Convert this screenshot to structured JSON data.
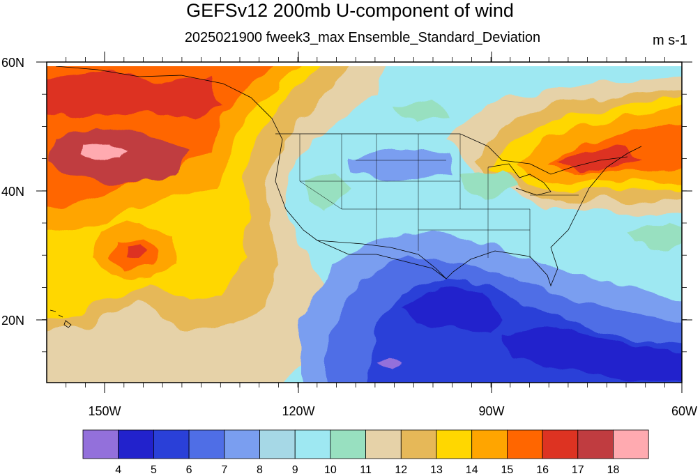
{
  "title": "GEFSv12 200mb U-component of wind",
  "subtitle": "2025021900 fweek3_max Ensemble_Standard_Deviation",
  "units": "m s-1",
  "latitude_labels": [
    "60N",
    "40N",
    "20N"
  ],
  "longitude_labels": [
    "150W",
    "120W",
    "90W",
    "60W"
  ],
  "colorbar": {
    "labels": [
      "4",
      "5",
      "6",
      "7",
      "8",
      "9",
      "10",
      "11",
      "12",
      "13",
      "14",
      "15",
      "16",
      "17",
      "18"
    ],
    "colors": [
      "#9370db",
      "#2222cc",
      "#2a40d8",
      "#4f6ee6",
      "#7a9ef0",
      "#a6d8e6",
      "#9ee8f2",
      "#98e0c0",
      "#e6d2a8",
      "#e6b858",
      "#ffd700",
      "#ffa500",
      "#ff6600",
      "#dd3322",
      "#c03c40",
      "#ffaab0"
    ]
  },
  "map": {
    "domain": {
      "lon_range": [
        -161,
        -60
      ],
      "lat_range": [
        10,
        60
      ]
    },
    "field_levels": [
      4,
      5,
      6,
      7,
      8,
      9,
      10,
      11,
      12,
      13,
      14,
      15,
      16,
      17,
      18
    ]
  }
}
